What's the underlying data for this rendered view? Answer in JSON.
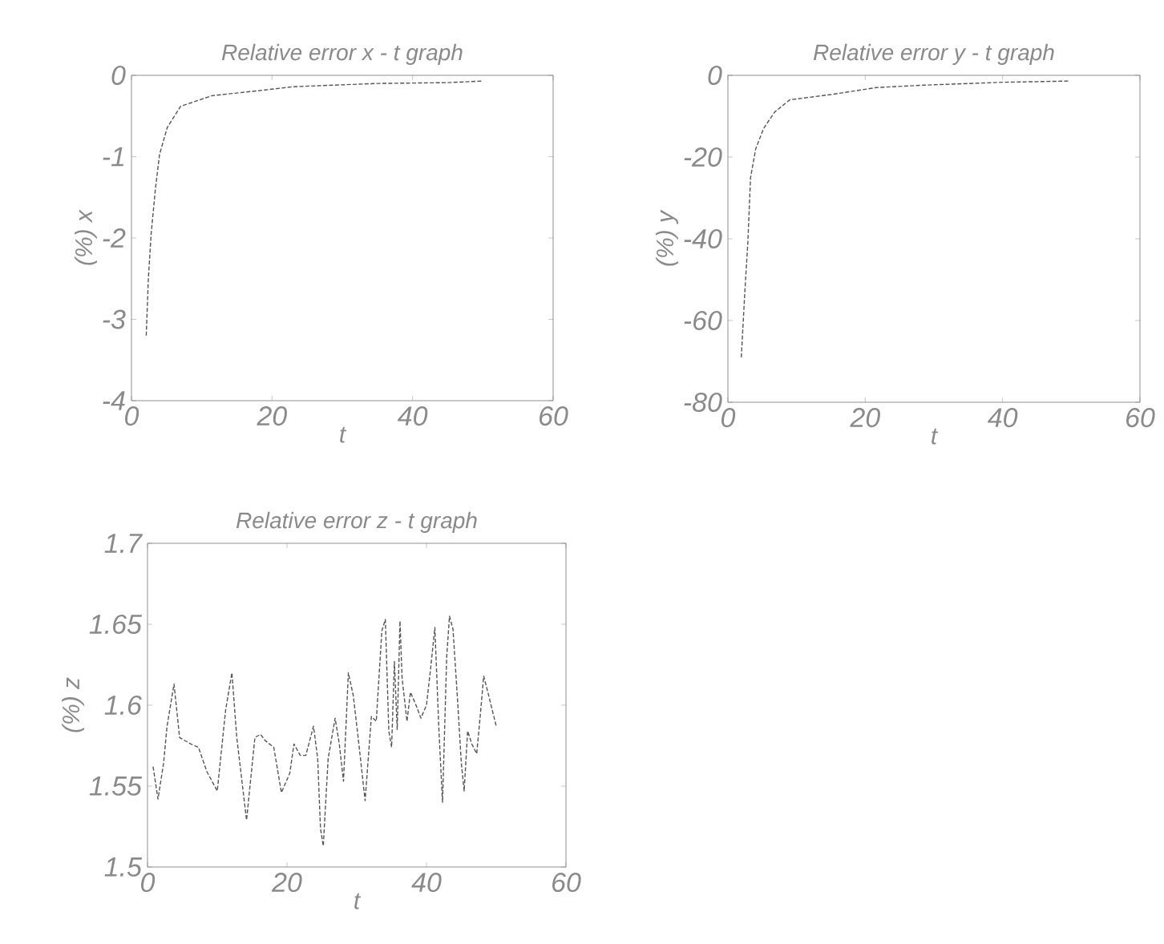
{
  "chart_data": [
    {
      "type": "line",
      "title": "Relative error x - t graph",
      "xlabel": "t",
      "ylabel": "(%) x",
      "color": "#555555",
      "line_style": "dashed",
      "x": [
        2.1,
        2.4,
        2.8,
        3.4,
        4,
        5.1,
        7,
        11.5,
        19,
        23,
        35,
        45,
        50
      ],
      "values": [
        -3.2,
        -2.5,
        -1.95,
        -1.4,
        -0.97,
        -0.64,
        -0.38,
        -0.25,
        -0.18,
        -0.14,
        -0.1,
        -0.09,
        -0.07
      ],
      "xlim": [
        0,
        60
      ],
      "xticks": [
        0,
        20,
        40,
        60
      ],
      "ylim": [
        -4,
        0
      ],
      "yticks": [
        -4,
        -3,
        -2,
        -1,
        0
      ]
    },
    {
      "type": "line",
      "title": "Relative error y - t graph",
      "xlabel": "t",
      "ylabel": "(%) y",
      "color": "#555555",
      "line_style": "dashed",
      "x": [
        1.95,
        2.5,
        2.9,
        3.3,
        4.05,
        5.2,
        6.8,
        9,
        15,
        21.6,
        28.6,
        40,
        49.7
      ],
      "values": [
        -69,
        -52,
        -41,
        -25,
        -18,
        -13,
        -9,
        -6,
        -4.7,
        -3,
        -2.4,
        -1.7,
        -1.4
      ],
      "xlim": [
        0,
        60
      ],
      "xticks": [
        0,
        20,
        40,
        60
      ],
      "ylim": [
        -80,
        0
      ],
      "yticks": [
        -80,
        -60,
        -40,
        -20,
        0
      ]
    },
    {
      "type": "line",
      "title": "Relative error z - t graph",
      "xlabel": "t",
      "ylabel": "(%) z",
      "color": "#555555",
      "line_style": "dashed",
      "x": [
        0.8,
        1.5,
        2.3,
        2.8,
        3.8,
        4.6,
        6.2,
        7.3,
        8.5,
        10,
        11.2,
        12.1,
        12.8,
        14.2,
        15.4,
        16.2,
        16.9,
        18.1,
        19.2,
        20.4,
        21,
        21.9,
        22.7,
        23.8,
        24.4,
        24.8,
        25.2,
        25.9,
        26.9,
        27.5,
        28.1,
        28.8,
        29.5,
        30.2,
        31.2,
        32.1,
        32.8,
        33.6,
        34.1,
        34.6,
        35,
        35.4,
        35.8,
        36.2,
        36.5,
        37.2,
        37.7,
        38.5,
        39.2,
        40,
        40.6,
        41.2,
        41.8,
        42.3,
        42.9,
        43.3,
        43.8,
        44.4,
        45,
        45.4,
        45.9,
        46.5,
        47.2,
        47.7,
        48.2,
        48.8,
        50
      ],
      "values": [
        1.562,
        1.542,
        1.564,
        1.587,
        1.613,
        1.58,
        1.576,
        1.574,
        1.559,
        1.547,
        1.597,
        1.62,
        1.58,
        1.529,
        1.58,
        1.582,
        1.578,
        1.574,
        1.546,
        1.558,
        1.576,
        1.569,
        1.569,
        1.587,
        1.567,
        1.524,
        1.513,
        1.567,
        1.592,
        1.576,
        1.553,
        1.62,
        1.606,
        1.58,
        1.541,
        1.593,
        1.59,
        1.646,
        1.653,
        1.584,
        1.574,
        1.627,
        1.585,
        1.652,
        1.617,
        1.59,
        1.608,
        1.6,
        1.592,
        1.6,
        1.623,
        1.648,
        1.583,
        1.54,
        1.63,
        1.655,
        1.647,
        1.607,
        1.564,
        1.547,
        1.584,
        1.576,
        1.57,
        1.593,
        1.618,
        1.608,
        1.587
      ],
      "xlim": [
        0,
        60
      ],
      "xticks": [
        0,
        20,
        40,
        60
      ],
      "ylim": [
        1.5,
        1.7
      ],
      "yticks": [
        1.5,
        1.55,
        1.6,
        1.65,
        1.7
      ]
    }
  ]
}
